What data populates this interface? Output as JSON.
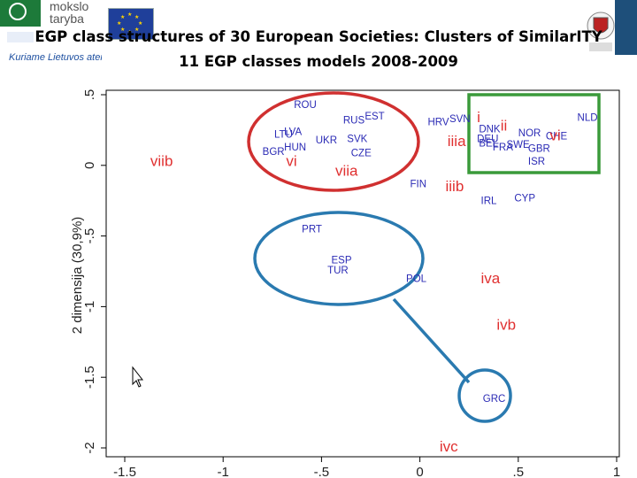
{
  "header": {
    "logo_text_line1": "mokslo",
    "logo_text_line2": "taryba",
    "logo_tagline": "Kuriame Lietuvos ateitį",
    "title_line1": "EGP class structures of 30 European Societies: Clusters of SimilarITY",
    "title_line2": "11 EGP classes models 2008-2009"
  },
  "colors": {
    "points": "#2b2bb5",
    "classes": "#e03030",
    "red_ellipse": "#d03030",
    "blue_ellipse": "#2a7ab0",
    "green_rect": "#3a9a3a"
  },
  "chart_data": {
    "type": "scatter",
    "xlabel": "",
    "ylabel": "2 dimensija (30,9%)",
    "xlim": [
      -1.5,
      1.0
    ],
    "ylim": [
      -2.0,
      0.5
    ],
    "x_ticks": [
      "-1.5",
      "-1",
      "-.5",
      "0",
      ".5",
      "1"
    ],
    "x_tick_values": [
      -1.5,
      -1.0,
      -0.5,
      0.0,
      0.5,
      1.0
    ],
    "y_ticks": [
      ".5",
      "0",
      "-.5",
      "-1",
      "-1.5",
      "-2"
    ],
    "y_tick_values": [
      0.5,
      0.0,
      -0.5,
      -1.0,
      -1.5,
      -2.0
    ],
    "countries": [
      {
        "label": "ROU",
        "x": -0.64,
        "y": 0.43
      },
      {
        "label": "RUS",
        "x": -0.39,
        "y": 0.32
      },
      {
        "label": "EST",
        "x": -0.28,
        "y": 0.35
      },
      {
        "label": "HRV",
        "x": 0.04,
        "y": 0.31
      },
      {
        "label": "SVN",
        "x": 0.15,
        "y": 0.33
      },
      {
        "label": "LVA",
        "x": -0.69,
        "y": 0.24
      },
      {
        "label": "LTU",
        "x": -0.74,
        "y": 0.22
      },
      {
        "label": "UKR",
        "x": -0.53,
        "y": 0.18
      },
      {
        "label": "SVK",
        "x": -0.37,
        "y": 0.19
      },
      {
        "label": "HUN",
        "x": -0.69,
        "y": 0.13
      },
      {
        "label": "BGR",
        "x": -0.8,
        "y": 0.1
      },
      {
        "label": "CZE",
        "x": -0.35,
        "y": 0.09
      },
      {
        "label": "NLD",
        "x": 0.8,
        "y": 0.34
      },
      {
        "label": "DNK",
        "x": 0.3,
        "y": 0.26
      },
      {
        "label": "DEU",
        "x": 0.29,
        "y": 0.19
      },
      {
        "label": "BEL",
        "x": 0.3,
        "y": 0.16
      },
      {
        "label": "NOR",
        "x": 0.5,
        "y": 0.23
      },
      {
        "label": "CHE",
        "x": 0.64,
        "y": 0.21
      },
      {
        "label": "SWE",
        "x": 0.44,
        "y": 0.15
      },
      {
        "label": "FRA",
        "x": 0.37,
        "y": 0.13
      },
      {
        "label": "GBR",
        "x": 0.55,
        "y": 0.12
      },
      {
        "label": "ISR",
        "x": 0.55,
        "y": 0.03
      },
      {
        "label": "FIN",
        "x": -0.05,
        "y": -0.13
      },
      {
        "label": "IRL",
        "x": 0.31,
        "y": -0.25
      },
      {
        "label": "CYP",
        "x": 0.48,
        "y": -0.23
      },
      {
        "label": "PRT",
        "x": -0.6,
        "y": -0.45
      },
      {
        "label": "ESP",
        "x": -0.45,
        "y": -0.67
      },
      {
        "label": "TUR",
        "x": -0.47,
        "y": -0.74
      },
      {
        "label": "POL",
        "x": -0.07,
        "y": -0.8
      },
      {
        "label": "GRC",
        "x": 0.32,
        "y": -1.65
      }
    ],
    "classes": [
      {
        "label": "i",
        "x": 0.29,
        "y": 0.35
      },
      {
        "label": "ii",
        "x": 0.41,
        "y": 0.29
      },
      {
        "label": "iiia",
        "x": 0.14,
        "y": 0.18
      },
      {
        "label": "iiib",
        "x": 0.13,
        "y": -0.14
      },
      {
        "label": "iva",
        "x": 0.31,
        "y": -0.79
      },
      {
        "label": "ivb",
        "x": 0.39,
        "y": -1.12
      },
      {
        "label": "ivc",
        "x": 0.1,
        "y": -1.98
      },
      {
        "label": "vi",
        "x": -0.68,
        "y": 0.04
      },
      {
        "label": "viia",
        "x": -0.43,
        "y": -0.03
      },
      {
        "label": "viib",
        "x": -1.37,
        "y": 0.04
      },
      {
        "label": "vi",
        "x": 0.66,
        "y": 0.22
      }
    ]
  }
}
